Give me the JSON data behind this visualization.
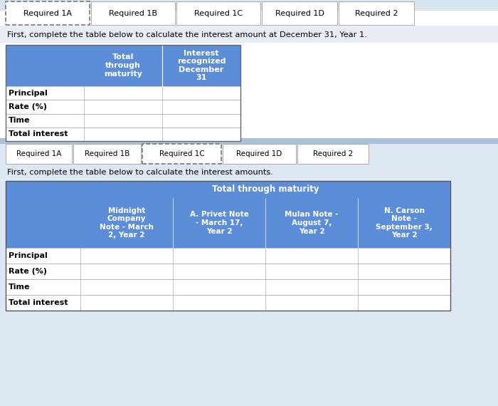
{
  "bg_color": "#c8d8e8",
  "white": "#ffffff",
  "blue_header": "#5b8dd9",
  "light_gray": "#f0f0f0",
  "tab_border_dotted": "#888888",
  "tab_border_solid": "#aaaaaa",
  "text_black": "#111111",
  "text_white": "#ffffff",
  "panel_top_bg": "#ffffff",
  "panel_bottom_bg": "#dde8f0",
  "table_border": "#555555",
  "cell_border": "#aaaaaa",
  "tabs1": [
    "Required 1A",
    "Required 1B",
    "Required 1C",
    "Required 1D",
    "Required 2"
  ],
  "tabs1_active": 0,
  "section1_text": "First, complete the table below to calculate the interest amount at December 31, Year 1.",
  "table1_col2_header": "Total\nthrough\nmaturity",
  "table1_col3_header": "Interest\nrecognized\nDecember\n31",
  "table1_rows": [
    "Principal",
    "Rate (%)",
    "Time",
    "Total interest"
  ],
  "tabs2": [
    "Required 1A",
    "Required 1B",
    "Required 1C",
    "Required 1D",
    "Required 2"
  ],
  "tabs2_active": 2,
  "section2_text": "First, complete the table below to calculate the interest amounts.",
  "table2_span_header": "Total through maturity",
  "table2_col_headers": [
    "",
    "Midnight\nCompany\nNote - March\n2, Year 2",
    "A. Privet Note\n- March 17,\nYear 2",
    "Mulan Note -\nAugust 7,\nYear 2",
    "N. Carson\nNote -\nSeptember 3,\nYear 2"
  ],
  "table2_rows": [
    "Principal",
    "Rate (%)",
    "Time",
    "Total interest"
  ]
}
